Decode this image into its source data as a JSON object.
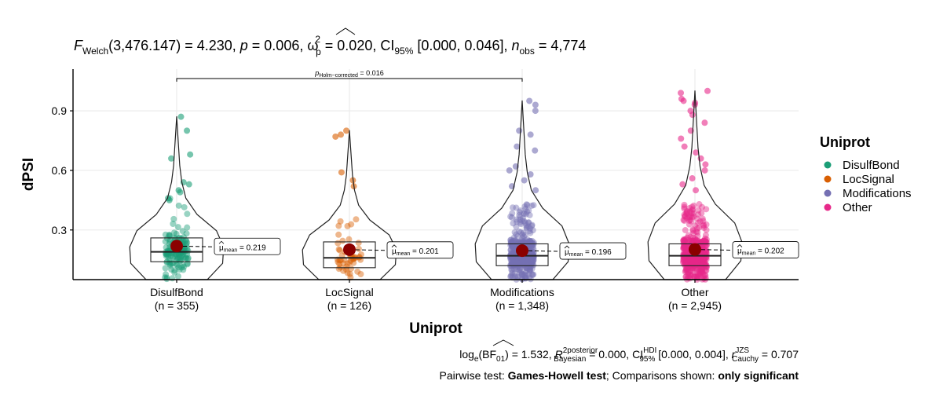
{
  "chart_data": {
    "type": "violin",
    "title": {
      "F_sub": "Welch",
      "df": "(3,476.147)",
      "F_value": " = 4.230, ",
      "p_value": " = 0.006, ",
      "omega_sub": "p",
      "omega_sup": "2",
      "omega_value": " = 0.020, CI",
      "ci_sub": "95%",
      "ci_value": " [0.000, 0.046], ",
      "n_sub": "obs",
      "n_value": " = 4,774"
    },
    "xlabel": "Uniprot",
    "ylabel": "dPSI",
    "y_ticks": [
      "0.3",
      "0.6",
      "0.9"
    ],
    "y_tick_values": [
      0.3,
      0.6,
      0.9
    ],
    "ylim": [
      0.05,
      1.11
    ],
    "grid": true,
    "categories": [
      "DisulfBond",
      "LocSignal",
      "Modifications",
      "Other"
    ],
    "counts": [
      "(n = 355)",
      "(n = 126)",
      "(n = 1,348)",
      "(n = 2,945)"
    ],
    "n": [
      355,
      126,
      1348,
      2945
    ],
    "colors": [
      "#1b9e77",
      "#d95f02",
      "#7570b3",
      "#e7298a"
    ],
    "means": [
      0.219,
      0.201,
      0.196,
      0.202
    ],
    "mean_labels": [
      "0.219",
      "0.201",
      "0.196",
      "0.202"
    ],
    "boxes": [
      {
        "q1": 0.14,
        "median": 0.19,
        "q3": 0.26,
        "min": 0.05,
        "max": 0.87
      },
      {
        "q1": 0.11,
        "median": 0.16,
        "q3": 0.24,
        "min": 0.05,
        "max": 0.8
      },
      {
        "q1": 0.12,
        "median": 0.17,
        "q3": 0.23,
        "min": 0.05,
        "max": 0.95
      },
      {
        "q1": 0.12,
        "median": 0.17,
        "q3": 0.23,
        "min": 0.05,
        "max": 1.0
      }
    ],
    "outliers": [
      [
        0.8,
        0.87,
        0.68,
        0.66,
        0.54,
        0.53,
        0.5,
        0.49,
        0.46,
        0.45
      ],
      [
        0.8,
        0.78,
        0.77,
        0.59,
        0.55,
        0.52
      ],
      [
        0.95,
        0.93,
        0.9,
        0.8,
        0.78,
        0.72,
        0.7,
        0.62,
        0.6,
        0.58,
        0.55,
        0.52,
        0.5
      ],
      [
        1.0,
        0.99,
        0.96,
        0.95,
        0.94,
        0.93,
        0.9,
        0.88,
        0.84,
        0.8,
        0.76,
        0.72,
        0.69,
        0.66,
        0.63,
        0.6,
        0.56,
        0.53,
        0.5
      ]
    ],
    "comparison": {
      "groups": [
        "DisulfBond",
        "Modifications"
      ],
      "p_label": "p",
      "p_sub": "Holm−corrected",
      "p_value": " = 0.016"
    },
    "mean_symbol": "μ",
    "mean_sub": "mean",
    "legend": {
      "title": "Uniprot",
      "position": "right",
      "items": [
        "DisulfBond",
        "LocSignal",
        "Modifications",
        "Other"
      ]
    },
    "caption": {
      "bf_prefix": "log",
      "bf_base": "e",
      "bf_mid": "(BF",
      "bf_sub": "01",
      "bf_value": ") = 1.532, ",
      "r2": "R",
      "r2_sup": "2",
      "r2_sup2": "posterior",
      "r2_sub": "Bayesian",
      "r2_value": " = 0.000, CI",
      "ci_sup": "HDI",
      "ci_sub": "95%",
      "ci_value": " [0.000, 0.004], ",
      "r": "r",
      "r_sup": "JZS",
      "r_sub": "Cauchy",
      "r_value": " = 0.707",
      "line2_a": "Pairwise test: ",
      "line2_b": "Games-Howell test",
      "line2_c": "; Comparisons shown: ",
      "line2_d": "only significant"
    }
  }
}
